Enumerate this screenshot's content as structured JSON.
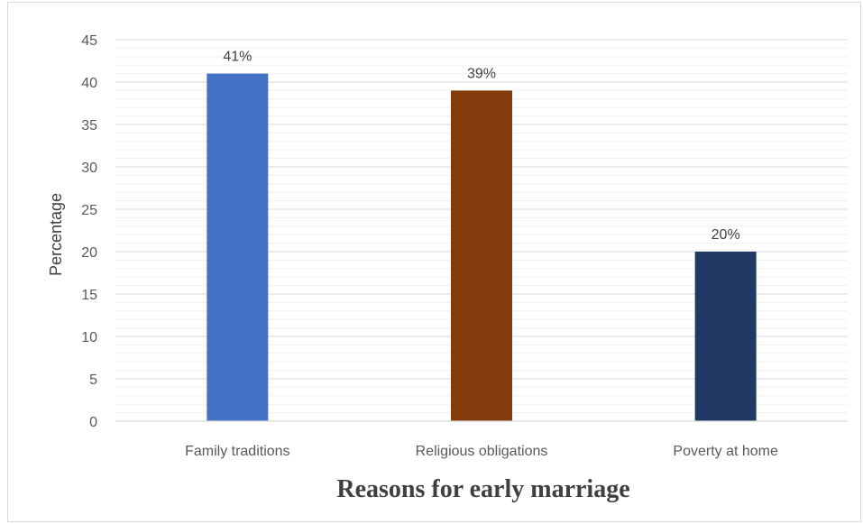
{
  "chart_data": {
    "type": "bar",
    "categories": [
      "Family traditions",
      "Religious obligations",
      "Poverty at home"
    ],
    "values": [
      41,
      39,
      20
    ],
    "data_labels": [
      "41%",
      "39%",
      "20%"
    ],
    "colors": [
      "#4472c4",
      "#843c0c",
      "#1f3864"
    ],
    "title": "",
    "xlabel": "Reasons for early marriage",
    "ylabel": "Percentage",
    "ylim": [
      0,
      45
    ],
    "yticks": [
      0,
      5,
      10,
      15,
      20,
      25,
      30,
      35,
      40,
      45
    ],
    "grid": true,
    "minor_grid": true,
    "legend": "none"
  }
}
